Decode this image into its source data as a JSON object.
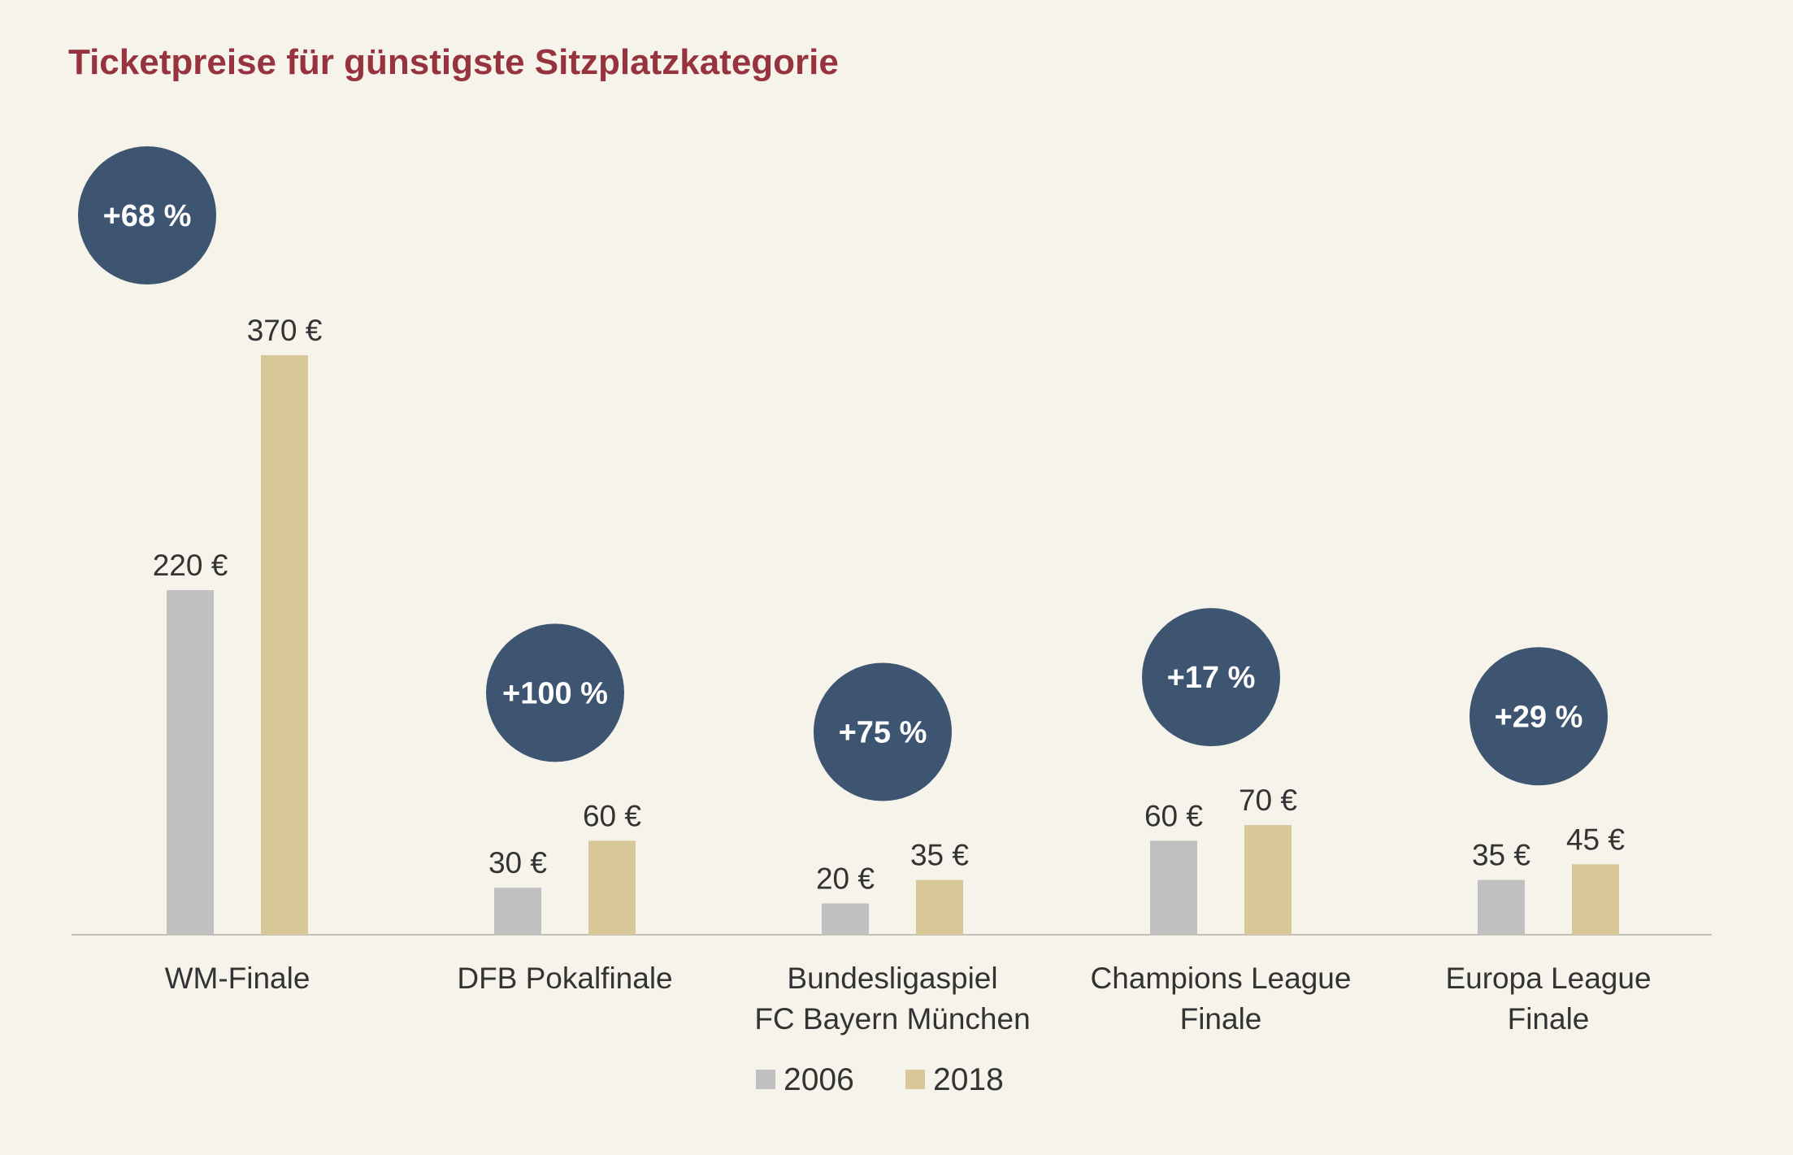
{
  "chart_data": {
    "type": "bar",
    "title": "Ticketpreise für günstigste Sitzplatzkategorie",
    "xlabel": "",
    "ylabel": "",
    "ylim": [
      0,
      370
    ],
    "categories": [
      [
        "WM-Finale"
      ],
      [
        "DFB Pokalfinale"
      ],
      [
        "Bundesligaspiel",
        "FC Bayern München"
      ],
      [
        "Champions League",
        "Finale"
      ],
      [
        "Europa League",
        "Finale"
      ]
    ],
    "series": [
      {
        "name": "2006",
        "color": "#c0c0c0",
        "values": [
          220,
          30,
          20,
          60,
          35
        ]
      },
      {
        "name": "2018",
        "color": "#d8c898",
        "values": [
          370,
          60,
          35,
          70,
          45
        ]
      }
    ],
    "data_labels": [
      [
        "220 €",
        "30 €",
        "20 €",
        "60 €",
        "35 €"
      ],
      [
        "370 €",
        "60 €",
        "35 €",
        "70 €",
        "45 €"
      ]
    ],
    "change_labels": [
      "+68 %",
      "+100 %",
      "+75 %",
      "+17 %",
      "+29 %"
    ],
    "change_color": "#3d5571",
    "legend": [
      "2006",
      "2018"
    ],
    "legend_position": "bottom-center",
    "grid": false
  }
}
